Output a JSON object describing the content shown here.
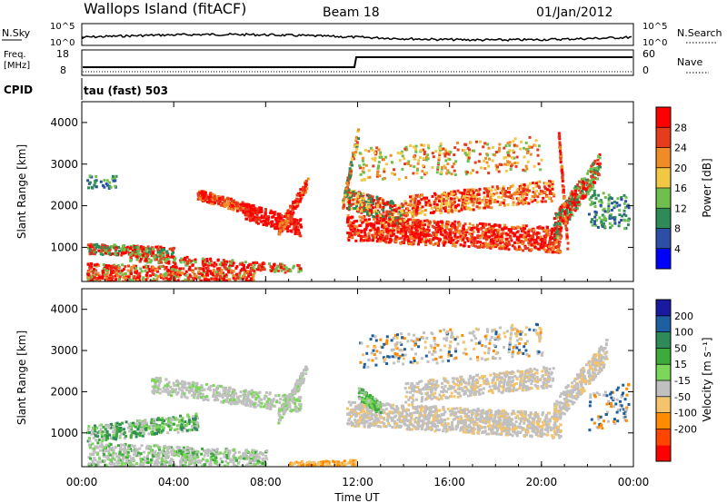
{
  "header": {
    "station": "Wallops Island (fitACF)",
    "beam": "Beam 18",
    "date": "01/Jan/2012"
  },
  "strip_labels": {
    "nsky": "N.Sky",
    "nsky_hi": "10^5",
    "nsky_lo": "10^0",
    "nsearch": "N.Search",
    "nsearch_hi": "10^5",
    "nsearch_lo": "10^0",
    "freq_line1": "Freq.",
    "freq_line2": "[MHz]",
    "freq_hi": "18",
    "freq_lo": "8",
    "nave": "Nave",
    "nave_hi": "60",
    "nave_lo": "0",
    "cpid": "CPID",
    "cpid_value": "tau (fast) 503"
  },
  "colors": {
    "power_scale": [
      "#0000ff",
      "#2b4fa6",
      "#2e8b57",
      "#6fbf4f",
      "#f2c744",
      "#f08c28",
      "#e63c1e",
      "#ff0000"
    ],
    "velocity_scale": [
      "#ff0000",
      "#ff4500",
      "#ff8c00",
      "#f5c36b",
      "#c0c0c0",
      "#7cd65a",
      "#3caa3c",
      "#2e8b57",
      "#1e5fa0",
      "#1a1aa0"
    ]
  },
  "chart_data": [
    {
      "type": "heatmap",
      "name": "power-panel",
      "xlabel": "",
      "ylabel": "Slant Range [km]",
      "xlim": [
        "00:00",
        "00:00"
      ],
      "ylim": [
        180,
        4500
      ],
      "x_ticks": [
        "00:00",
        "04:00",
        "08:00",
        "12:00",
        "16:00",
        "20:00",
        "00:00"
      ],
      "y_ticks": [
        1000,
        2000,
        3000,
        4000
      ],
      "colorbar": {
        "label": "Power [dB]",
        "ticks": [
          "4",
          "8",
          "12",
          "16",
          "20",
          "24",
          "28"
        ],
        "range": [
          0,
          32
        ]
      }
    },
    {
      "type": "heatmap",
      "name": "velocity-panel",
      "xlabel": "Time UT",
      "ylabel": "Slant Range [km]",
      "xlim": [
        "00:00",
        "00:00"
      ],
      "ylim": [
        180,
        4500
      ],
      "x_ticks": [
        "00:00",
        "04:00",
        "08:00",
        "12:00",
        "16:00",
        "20:00",
        "00:00"
      ],
      "y_ticks": [
        1000,
        2000,
        3000,
        4000
      ],
      "colorbar": {
        "label": "Velocity [m s⁻¹]",
        "ticks": [
          "200",
          "100",
          "50",
          "15",
          "-15",
          "-50",
          "-100",
          "-200"
        ]
      }
    }
  ]
}
